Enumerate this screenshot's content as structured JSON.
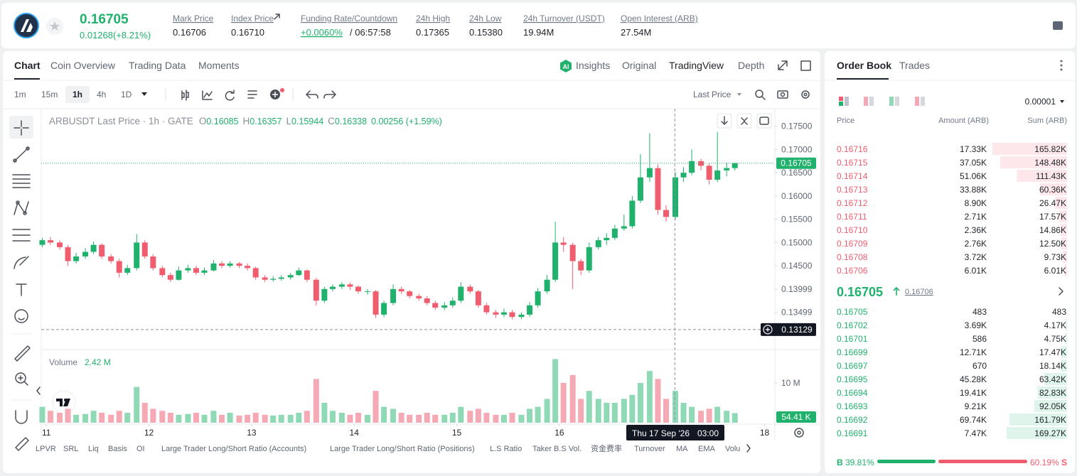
{
  "header": {
    "price": "0.16705",
    "change": "0.01268(+8.21%)",
    "stats": [
      {
        "label": "Mark Price",
        "value": "0.16706"
      },
      {
        "label": "Index Price",
        "value": "0.16710"
      },
      {
        "label": "Funding Rate/Countdown",
        "value": "+0.0060%",
        "extra": "/ 06:57:58"
      },
      {
        "label": "24h High",
        "value": "0.17365"
      },
      {
        "label": "24h Low",
        "value": "0.15380"
      },
      {
        "label": "24h Turnover (USDT)",
        "value": "19.94M"
      },
      {
        "label": "Open Interest (ARB)",
        "value": "27.54M"
      }
    ]
  },
  "chart_panel": {
    "tabs": [
      "Chart",
      "Coin Overview",
      "Trading Data",
      "Moments"
    ],
    "views": [
      "Insights",
      "Original",
      "TradingView",
      "Depth"
    ],
    "intervals": [
      "1m",
      "15m",
      "1h",
      "4h",
      "1D"
    ],
    "price_source": "Last Price",
    "indicators": [
      "LPVR",
      "SRL",
      "Liq",
      "Basis",
      "OI",
      "Large Trader Long/Short Ratio (Accounts)",
      "Large Trader Long/Short Ratio (Positions)",
      "L.S Ratio",
      "Taker B.S Vol.",
      "资金费率",
      "Turnover",
      "MA",
      "EMA",
      "Volu"
    ]
  },
  "chart_data": {
    "type": "candlestick",
    "title": "ARBUSDT Last Price · 1h · GATE",
    "ohlc_legend": [
      {
        "key": "O",
        "value": "0.16085"
      },
      {
        "key": "H",
        "value": "0.16357"
      },
      {
        "key": "L",
        "value": "0.15944"
      },
      {
        "key": "C",
        "value": "0.16338"
      }
    ],
    "legend_change": "0.00256 (+1.59%)",
    "colors": {
      "up": "#20b26c",
      "down": "#ef5d6f",
      "up_volume": "#8fd9b6",
      "down_volume": "#f5a9b4"
    },
    "x": [
      10.96,
      11.04,
      11.13,
      11.21,
      11.29,
      11.38,
      11.46,
      11.54,
      11.63,
      11.71,
      11.79,
      11.88,
      11.96,
      12.04,
      12.13,
      12.21,
      12.29,
      12.38,
      12.46,
      12.54,
      12.63,
      12.71,
      12.79,
      12.88,
      12.96,
      13.04,
      13.13,
      13.21,
      13.29,
      13.38,
      13.46,
      13.54,
      13.63,
      13.71,
      13.79,
      13.88,
      13.96,
      14.04,
      14.13,
      14.21,
      14.29,
      14.38,
      14.46,
      14.54,
      14.63,
      14.71,
      14.79,
      14.88,
      14.96,
      15.04,
      15.13,
      15.21,
      15.29,
      15.38,
      15.46,
      15.54,
      15.63,
      15.71,
      15.79,
      15.88,
      15.96,
      16.04,
      16.13,
      16.21,
      16.29,
      16.38,
      16.46,
      16.54,
      16.63,
      16.71,
      16.79,
      16.88,
      16.96,
      17.04,
      17.13,
      17.21,
      17.29,
      17.38,
      17.46,
      17.54,
      17.63,
      17.71
    ],
    "candles": [
      [
        0.1495,
        0.151,
        0.149,
        0.1505
      ],
      [
        0.1505,
        0.1512,
        0.1495,
        0.15
      ],
      [
        0.15,
        0.1505,
        0.1485,
        0.149
      ],
      [
        0.149,
        0.1495,
        0.145,
        0.146
      ],
      [
        0.146,
        0.1478,
        0.1455,
        0.147
      ],
      [
        0.147,
        0.1488,
        0.1465,
        0.148
      ],
      [
        0.148,
        0.1502,
        0.1475,
        0.1495
      ],
      [
        0.1495,
        0.1498,
        0.1465,
        0.147
      ],
      [
        0.147,
        0.1475,
        0.1455,
        0.146
      ],
      [
        0.146,
        0.1465,
        0.1425,
        0.1435
      ],
      [
        0.1435,
        0.1452,
        0.143,
        0.1445
      ],
      [
        0.1445,
        0.1518,
        0.144,
        0.15
      ],
      [
        0.15,
        0.1505,
        0.1465,
        0.147
      ],
      [
        0.147,
        0.1475,
        0.144,
        0.1445
      ],
      [
        0.1445,
        0.145,
        0.1425,
        0.143
      ],
      [
        0.143,
        0.1435,
        0.1415,
        0.142
      ],
      [
        0.142,
        0.1448,
        0.1418,
        0.144
      ],
      [
        0.144,
        0.1452,
        0.1435,
        0.1445
      ],
      [
        0.1445,
        0.145,
        0.143,
        0.1435
      ],
      [
        0.1435,
        0.1446,
        0.143,
        0.144
      ],
      [
        0.144,
        0.1462,
        0.1438,
        0.1455
      ],
      [
        0.1455,
        0.146,
        0.1445,
        0.145
      ],
      [
        0.145,
        0.146,
        0.1446,
        0.1455
      ],
      [
        0.1455,
        0.1458,
        0.1445,
        0.145
      ],
      [
        0.145,
        0.1455,
        0.144,
        0.1445
      ],
      [
        0.1445,
        0.1448,
        0.142,
        0.1425
      ],
      [
        0.1425,
        0.143,
        0.1415,
        0.142
      ],
      [
        0.142,
        0.1428,
        0.1416,
        0.1422
      ],
      [
        0.1422,
        0.143,
        0.1418,
        0.1425
      ],
      [
        0.1425,
        0.1435,
        0.142,
        0.143
      ],
      [
        0.143,
        0.1446,
        0.1428,
        0.144
      ],
      [
        0.144,
        0.1442,
        0.1415,
        0.142
      ],
      [
        0.142,
        0.1424,
        0.1365,
        0.1375
      ],
      [
        0.1375,
        0.1405,
        0.137,
        0.14
      ],
      [
        0.14,
        0.141,
        0.1395,
        0.1405
      ],
      [
        0.1405,
        0.1415,
        0.14,
        0.141
      ],
      [
        0.141,
        0.1414,
        0.1398,
        0.1405
      ],
      [
        0.1405,
        0.1408,
        0.139,
        0.1395
      ],
      [
        0.1395,
        0.14,
        0.1388,
        0.1395
      ],
      [
        0.1395,
        0.1398,
        0.1338,
        0.1345
      ],
      [
        0.1345,
        0.1375,
        0.134,
        0.137
      ],
      [
        0.137,
        0.141,
        0.1365,
        0.14
      ],
      [
        0.14,
        0.1405,
        0.139,
        0.1395
      ],
      [
        0.1395,
        0.1398,
        0.138,
        0.1385
      ],
      [
        0.1385,
        0.139,
        0.1375,
        0.138
      ],
      [
        0.138,
        0.1385,
        0.1365,
        0.137
      ],
      [
        0.137,
        0.1375,
        0.1355,
        0.136
      ],
      [
        0.136,
        0.1372,
        0.1355,
        0.1365
      ],
      [
        0.1365,
        0.1382,
        0.136,
        0.1375
      ],
      [
        0.1375,
        0.1415,
        0.137,
        0.1405
      ],
      [
        0.1405,
        0.141,
        0.139,
        0.1395
      ],
      [
        0.1395,
        0.1398,
        0.136,
        0.1365
      ],
      [
        0.1365,
        0.137,
        0.1345,
        0.135
      ],
      [
        0.135,
        0.1355,
        0.1338,
        0.1345
      ],
      [
        0.1345,
        0.1358,
        0.134,
        0.135
      ],
      [
        0.135,
        0.1355,
        0.1335,
        0.134
      ],
      [
        0.134,
        0.135,
        0.1335,
        0.1345
      ],
      [
        0.1345,
        0.1372,
        0.134,
        0.1365
      ],
      [
        0.1365,
        0.1402,
        0.136,
        0.1395
      ],
      [
        0.1395,
        0.143,
        0.139,
        0.142
      ],
      [
        0.142,
        0.1545,
        0.1415,
        0.15
      ],
      [
        0.15,
        0.1512,
        0.148,
        0.1495
      ],
      [
        0.1495,
        0.15,
        0.14,
        0.146
      ],
      [
        0.146,
        0.1465,
        0.143,
        0.144
      ],
      [
        0.144,
        0.15,
        0.1435,
        0.149
      ],
      [
        0.149,
        0.1512,
        0.1485,
        0.1505
      ],
      [
        0.1505,
        0.152,
        0.1495,
        0.151
      ],
      [
        0.151,
        0.1538,
        0.1505,
        0.153
      ],
      [
        0.153,
        0.156,
        0.1525,
        0.1535
      ],
      [
        0.1535,
        0.16,
        0.153,
        0.159
      ],
      [
        0.159,
        0.169,
        0.1585,
        0.164
      ],
      [
        0.164,
        0.1735,
        0.163,
        0.166
      ],
      [
        0.166,
        0.1668,
        0.156,
        0.157
      ],
      [
        0.157,
        0.158,
        0.1545,
        0.1555
      ],
      [
        0.1555,
        0.1652,
        0.155,
        0.164
      ],
      [
        0.164,
        0.1662,
        0.163,
        0.165
      ],
      [
        0.165,
        0.17,
        0.1645,
        0.1675
      ],
      [
        0.1675,
        0.168,
        0.1655,
        0.1665
      ],
      [
        0.1665,
        0.167,
        0.1625,
        0.1635
      ],
      [
        0.1635,
        0.1738,
        0.163,
        0.1655
      ],
      [
        0.1655,
        0.1672,
        0.1642,
        0.166
      ],
      [
        0.166,
        0.1672,
        0.1655,
        0.16705
      ]
    ],
    "xlim": [
      10.95,
      18.1
    ],
    "xticks": [
      11,
      12,
      13,
      14,
      15,
      16,
      18
    ],
    "ylim": [
      0.1273,
      0.1777
    ],
    "yticks": [
      {
        "value": 0.175,
        "label": "0.17500"
      },
      {
        "value": 0.17,
        "label": "0.17000"
      },
      {
        "value": 0.165,
        "label": "0.16500"
      },
      {
        "value": 0.16,
        "label": "0.16000"
      },
      {
        "value": 0.155,
        "label": "0.15500"
      },
      {
        "value": 0.15,
        "label": "0.15000"
      },
      {
        "value": 0.145,
        "label": "0.14500"
      },
      0.13999,
      0.13499
    ],
    "grid": false,
    "last_price": 0.16705,
    "crosshair": {
      "x": 17.125,
      "price": 0.13129,
      "date_label": "Thu 17 Sep '26",
      "time_label": "03:00"
    },
    "volume": {
      "label": "Volume",
      "current": "2.42 M",
      "tag": "54.41 K",
      "ylim": [
        0,
        17.5
      ],
      "yticks": [
        {
          "value": 10,
          "label": "10 M"
        }
      ],
      "values": [
        4,
        3,
        2.5,
        3.5,
        2,
        2.2,
        3,
        2.5,
        2,
        3,
        2.5,
        9,
        5,
        3.5,
        3,
        2.5,
        2,
        2.2,
        2.5,
        2,
        3,
        2,
        2.5,
        1.8,
        2,
        2.5,
        2,
        1.8,
        2,
        2,
        2.5,
        3,
        11,
        5,
        3,
        2.5,
        2,
        2.5,
        2,
        8,
        4,
        3.5,
        2.5,
        2,
        2,
        2.5,
        2,
        2,
        2.5,
        4,
        3,
        3.5,
        2.5,
        2,
        2,
        2.5,
        2,
        3.5,
        4,
        6,
        16,
        10,
        12,
        6,
        8,
        6,
        5,
        5,
        6,
        7,
        10,
        13,
        11,
        6,
        8,
        5,
        4,
        3,
        3.5,
        4,
        3,
        2.42
      ]
    }
  },
  "order_book": {
    "tabs": [
      "Order Book",
      "Trades"
    ],
    "precision": "0.00001",
    "columns": [
      "Price",
      "Amount (ARB)",
      "Sum (ARB)"
    ],
    "asks": {
      "prices": [
        "0.16716",
        "0.16715",
        "0.16714",
        "0.16713",
        "0.16712",
        "0.16711",
        "0.16710",
        "0.16709",
        "0.16708",
        "0.16706"
      ],
      "amounts": [
        "17.33K",
        "37.05K",
        "51.06K",
        "33.88K",
        "8.90K",
        "2.71K",
        "2.36K",
        "2.76K",
        "3.72K",
        "6.01K"
      ],
      "sums": [
        165820,
        148480,
        111430,
        60360,
        26470,
        17570,
        14860,
        12500,
        9730,
        6010
      ],
      "sum_labels": [
        "165.82K",
        "148.48K",
        "111.43K",
        "60.36K",
        "26.47K",
        "17.57K",
        "14.86K",
        "12.50K",
        "9.73K",
        "6.01K"
      ]
    },
    "last_price": "0.16705",
    "mark_price": "0.16706",
    "bids": {
      "prices": [
        "0.16705",
        "0.16702",
        "0.16701",
        "0.16699",
        "0.16697",
        "0.16695",
        "0.16694",
        "0.16693",
        "0.16692",
        "0.16691"
      ],
      "amounts": [
        "483",
        "3.69K",
        "586",
        "12.71K",
        "670",
        "45.28K",
        "19.41K",
        "9.21K",
        "69.74K",
        "7.47K"
      ],
      "sums": [
        483,
        4170,
        4750,
        17470,
        18140,
        63420,
        82830,
        92050,
        161790,
        169270
      ],
      "sum_labels": [
        "483",
        "4.17K",
        "4.75K",
        "17.47K",
        "18.14K",
        "63.42K",
        "82.83K",
        "92.05K",
        "161.79K",
        "169.27K"
      ]
    },
    "ratio": {
      "buy_key": "B",
      "buy": {
        "value": 39.81,
        "label": "39.81%"
      },
      "sell": {
        "value": 60.19,
        "label": "60.19%"
      },
      "sell_key": "S"
    }
  }
}
